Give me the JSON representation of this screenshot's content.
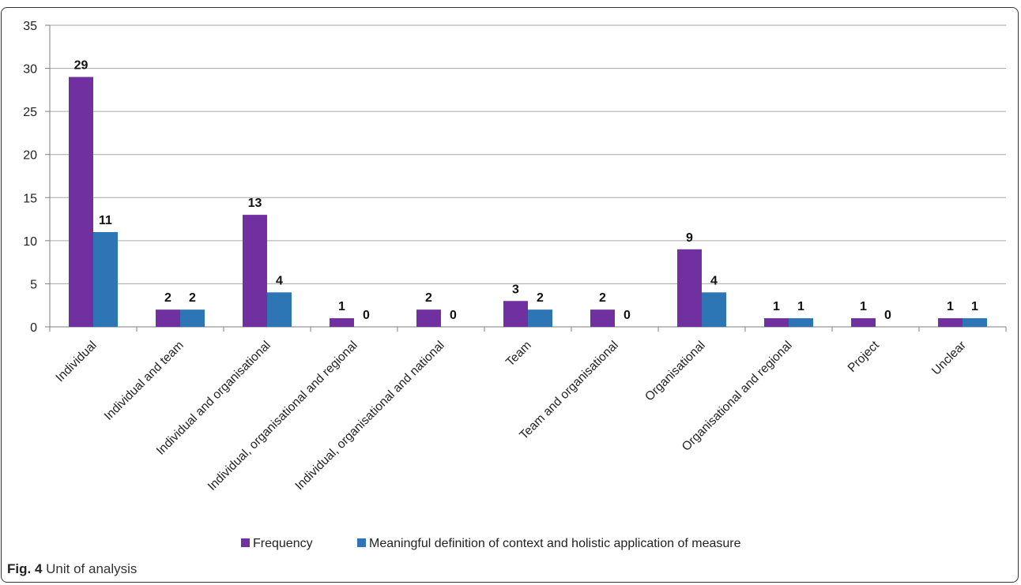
{
  "figure": {
    "label": "Fig. 4",
    "caption": "Unit of analysis"
  },
  "colors": {
    "frequency": "#7030A0",
    "meaningful": "#2E75B6",
    "grid": "#a6a6a6",
    "axis": "#7f7f7f"
  },
  "chart_data": {
    "type": "bar",
    "title": "",
    "xlabel": "",
    "ylabel": "",
    "ylim": [
      0,
      35
    ],
    "yticks": [
      0,
      5,
      10,
      15,
      20,
      25,
      30,
      35
    ],
    "grid": true,
    "legend_position": "bottom",
    "categories": [
      "Individual",
      "Individual and team",
      "Individual and organisational",
      "Individual, organisational and regional",
      "Individual, organisational and national",
      "Team",
      "Team and organisational",
      "Organisational",
      "Organisational and regional",
      "Project",
      "Unclear"
    ],
    "series": [
      {
        "name": "Frequency",
        "color": "#7030A0",
        "values": [
          29,
          2,
          13,
          1,
          2,
          3,
          2,
          9,
          1,
          1,
          1
        ]
      },
      {
        "name": "Meaningful definition of context and holistic application of measure",
        "color": "#2E75B6",
        "values": [
          11,
          2,
          4,
          0,
          0,
          2,
          0,
          4,
          1,
          0,
          1
        ]
      }
    ]
  }
}
